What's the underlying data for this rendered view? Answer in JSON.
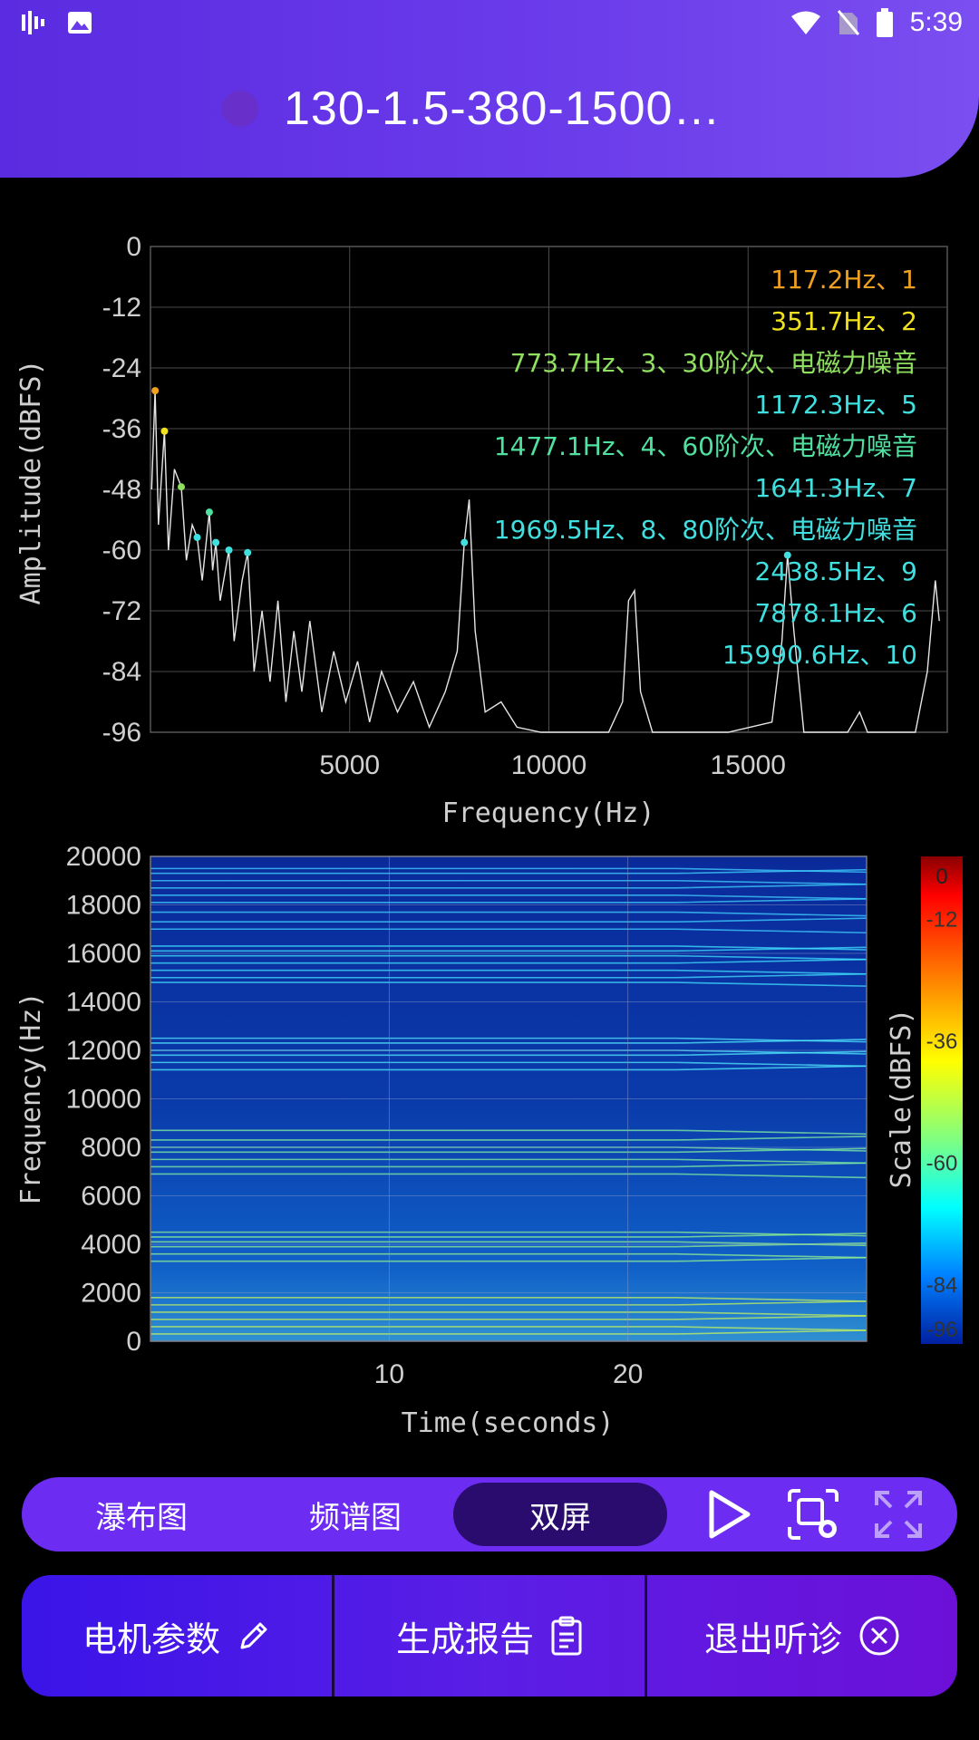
{
  "status_bar": {
    "time": "5:39",
    "icons": [
      "sound-wave-icon",
      "image-icon",
      "wifi-icon",
      "no-sim-icon",
      "battery-icon"
    ]
  },
  "header": {
    "title": "130-1.5-380-1500…"
  },
  "spectrum_chart": {
    "chart_data": {
      "type": "line",
      "xlabel": "Frequency(Hz)",
      "ylabel": "Amplitude(dBFS)",
      "ylim": [
        -96,
        0
      ],
      "xlim": [
        0,
        20000
      ],
      "y_ticks": [
        "0",
        "-12",
        "-24",
        "-36",
        "-48",
        "-60",
        "-72",
        "-84",
        "-96"
      ],
      "x_ticks": [
        "5000",
        "10000",
        "15000"
      ],
      "grid": true,
      "annotations": [
        {
          "text": "117.2Hz、1",
          "color": "#f0a020"
        },
        {
          "text": "351.7Hz、2",
          "color": "#f0e020"
        },
        {
          "text": "773.7Hz、3、30阶次、电磁力噪音",
          "color": "#90e060"
        },
        {
          "text": "1172.3Hz、5",
          "color": "#40e0e0"
        },
        {
          "text": "1477.1Hz、4、60阶次、电磁力噪音",
          "color": "#50e0a0"
        },
        {
          "text": "1641.3Hz、7",
          "color": "#40e0e0"
        },
        {
          "text": "1969.5Hz、8、80阶次、电磁力噪音",
          "color": "#40e0e0"
        },
        {
          "text": "2438.5Hz、9",
          "color": "#40e0e0"
        },
        {
          "text": "7878.1Hz、6",
          "color": "#40e0e0"
        },
        {
          "text": "15990.6Hz、10",
          "color": "#40e0e0"
        }
      ],
      "peaks": [
        {
          "x": 117.2,
          "y": -28.5,
          "color": "#f0a020"
        },
        {
          "x": 351.7,
          "y": -36.5,
          "color": "#f0e020"
        },
        {
          "x": 773.7,
          "y": -47.5,
          "color": "#90e060"
        },
        {
          "x": 1172.3,
          "y": -57.5,
          "color": "#40e0e0"
        },
        {
          "x": 1477.1,
          "y": -52.5,
          "color": "#50e0a0"
        },
        {
          "x": 1641.3,
          "y": -58.5,
          "color": "#40e0e0"
        },
        {
          "x": 1969.5,
          "y": -60,
          "color": "#40e0e0"
        },
        {
          "x": 2438.5,
          "y": -60.5,
          "color": "#40e0e0"
        },
        {
          "x": 7878.1,
          "y": -58.5,
          "color": "#40e0e0"
        },
        {
          "x": 15990.6,
          "y": -61,
          "color": "#40e0e0"
        }
      ],
      "trace": [
        [
          30,
          -48
        ],
        [
          117,
          -28.5
        ],
        [
          200,
          -55
        ],
        [
          351,
          -36.5
        ],
        [
          450,
          -60
        ],
        [
          600,
          -44
        ],
        [
          773,
          -47.5
        ],
        [
          900,
          -62
        ],
        [
          1050,
          -55
        ],
        [
          1172,
          -57.5
        ],
        [
          1300,
          -66
        ],
        [
          1477,
          -52.5
        ],
        [
          1560,
          -64
        ],
        [
          1641,
          -58.5
        ],
        [
          1750,
          -70
        ],
        [
          1969,
          -60
        ],
        [
          2100,
          -78
        ],
        [
          2300,
          -66
        ],
        [
          2438,
          -60.5
        ],
        [
          2600,
          -84
        ],
        [
          2800,
          -72
        ],
        [
          3000,
          -86
        ],
        [
          3200,
          -70
        ],
        [
          3400,
          -90
        ],
        [
          3600,
          -76
        ],
        [
          3800,
          -88
        ],
        [
          4000,
          -74
        ],
        [
          4300,
          -92
        ],
        [
          4600,
          -80
        ],
        [
          4900,
          -90
        ],
        [
          5200,
          -82
        ],
        [
          5500,
          -94
        ],
        [
          5800,
          -84
        ],
        [
          6200,
          -92
        ],
        [
          6600,
          -86
        ],
        [
          7000,
          -95
        ],
        [
          7400,
          -88
        ],
        [
          7700,
          -80
        ],
        [
          7878,
          -58.5
        ],
        [
          8000,
          -50
        ],
        [
          8150,
          -76
        ],
        [
          8400,
          -92
        ],
        [
          8800,
          -90
        ],
        [
          9200,
          -95
        ],
        [
          9800,
          -96
        ],
        [
          10500,
          -96
        ],
        [
          11500,
          -96
        ],
        [
          11850,
          -90
        ],
        [
          12000,
          -70
        ],
        [
          12150,
          -68
        ],
        [
          12300,
          -88
        ],
        [
          12600,
          -96
        ],
        [
          13500,
          -96
        ],
        [
          14500,
          -96
        ],
        [
          15600,
          -94
        ],
        [
          15850,
          -78
        ],
        [
          15990,
          -61
        ],
        [
          16150,
          -76
        ],
        [
          16400,
          -96
        ],
        [
          17500,
          -96
        ],
        [
          17800,
          -92
        ],
        [
          18000,
          -96
        ],
        [
          19200,
          -96
        ],
        [
          19500,
          -84
        ],
        [
          19700,
          -66
        ],
        [
          19800,
          -74
        ]
      ]
    }
  },
  "spectrogram_chart": {
    "chart_data": {
      "type": "heatmap",
      "xlabel": "Time(seconds)",
      "ylabel": "Frequency(Hz)",
      "y_ticks": [
        "20000",
        "18000",
        "16000",
        "14000",
        "12000",
        "10000",
        "8000",
        "6000",
        "4000",
        "2000",
        "0"
      ],
      "x_ticks": [
        "10",
        "20"
      ],
      "xlim": [
        0,
        30
      ],
      "ylim": [
        0,
        20000
      ],
      "colorbar_label": "Scale(dBFS)",
      "colorbar_ticks": [
        "0",
        "-12",
        "-36",
        "-60",
        "-84",
        "-96"
      ],
      "colorbar_range": [
        -96,
        0
      ]
    }
  },
  "tabs": {
    "items": [
      "瀑布图",
      "频谱图",
      "双屏"
    ],
    "active": "双屏"
  },
  "actions": {
    "motor_params": "电机参数",
    "generate_report": "生成报告",
    "exit_diagnosis": "退出听诊"
  }
}
